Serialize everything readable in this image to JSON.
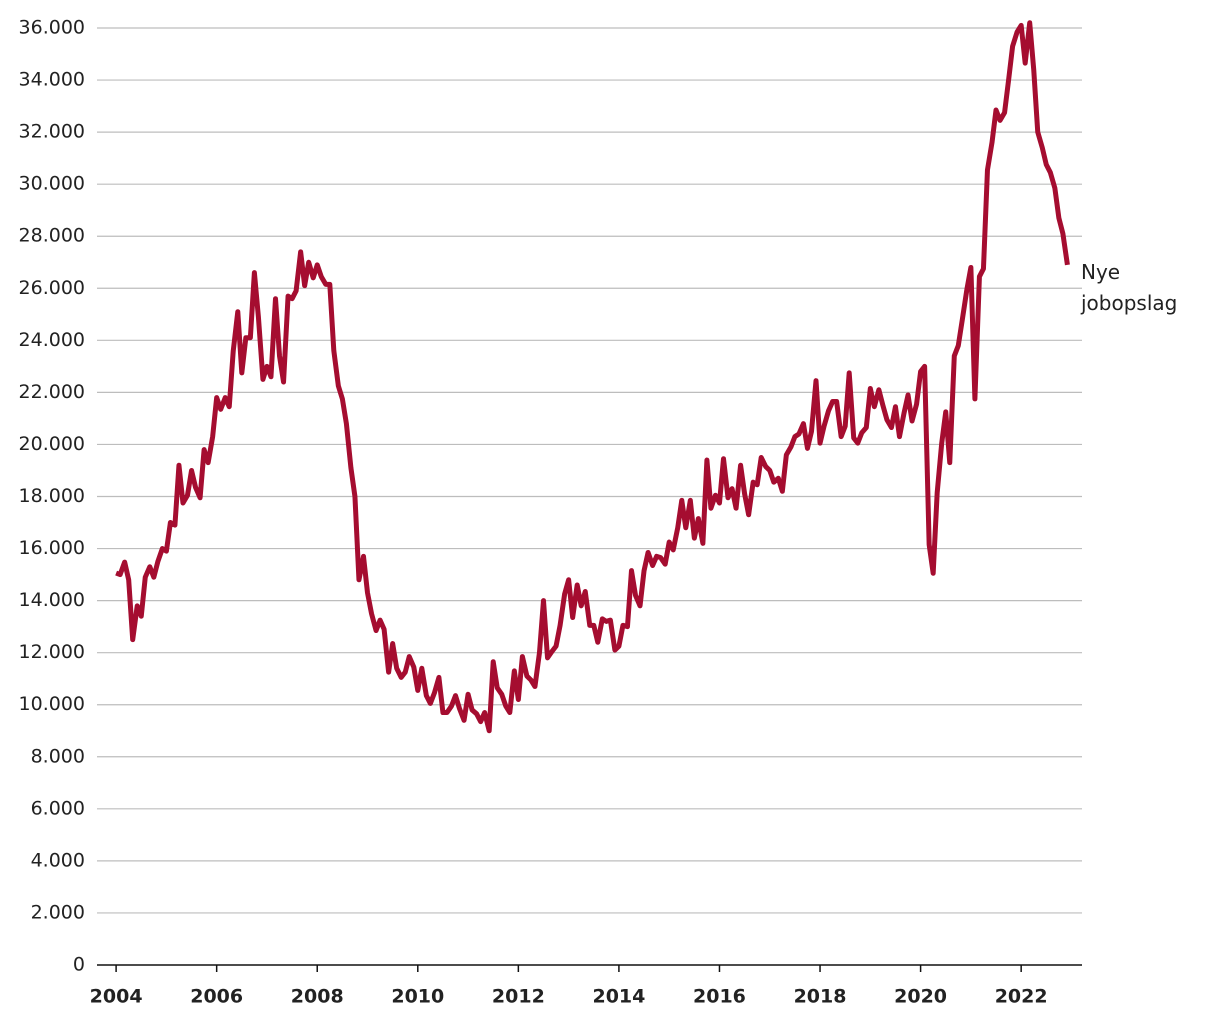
{
  "chart_data": {
    "type": "line",
    "annotations": [
      "Nye jobopslag"
    ],
    "x": [
      2004.0,
      2004.08,
      2004.17,
      2004.25,
      2004.33,
      2004.42,
      2004.5,
      2004.58,
      2004.67,
      2004.75,
      2004.83,
      2004.92,
      2005.0,
      2005.08,
      2005.17,
      2005.25,
      2005.33,
      2005.42,
      2005.5,
      2005.58,
      2005.67,
      2005.75,
      2005.83,
      2005.92,
      2006.0,
      2006.08,
      2006.17,
      2006.25,
      2006.33,
      2006.42,
      2006.5,
      2006.58,
      2006.67,
      2006.75,
      2006.83,
      2006.92,
      2007.0,
      2007.08,
      2007.17,
      2007.25,
      2007.33,
      2007.42,
      2007.5,
      2007.58,
      2007.67,
      2007.75,
      2007.83,
      2007.92,
      2008.0,
      2008.08,
      2008.17,
      2008.25,
      2008.33,
      2008.42,
      2008.5,
      2008.58,
      2008.67,
      2008.75,
      2008.83,
      2008.92,
      2009.0,
      2009.08,
      2009.17,
      2009.25,
      2009.33,
      2009.42,
      2009.5,
      2009.58,
      2009.67,
      2009.75,
      2009.83,
      2009.92,
      2010.0,
      2010.08,
      2010.17,
      2010.25,
      2010.33,
      2010.42,
      2010.5,
      2010.58,
      2010.67,
      2010.75,
      2010.83,
      2010.92,
      2011.0,
      2011.08,
      2011.17,
      2011.25,
      2011.33,
      2011.42,
      2011.5,
      2011.58,
      2011.67,
      2011.75,
      2011.83,
      2011.92,
      2012.0,
      2012.08,
      2012.17,
      2012.25,
      2012.33,
      2012.42,
      2012.5,
      2012.58,
      2012.67,
      2012.75,
      2012.83,
      2012.92,
      2013.0,
      2013.08,
      2013.17,
      2013.25,
      2013.33,
      2013.42,
      2013.5,
      2013.58,
      2013.67,
      2013.75,
      2013.83,
      2013.92,
      2014.0,
      2014.08,
      2014.17,
      2014.25,
      2014.33,
      2014.42,
      2014.5,
      2014.58,
      2014.67,
      2014.75,
      2014.83,
      2014.92,
      2015.0,
      2015.08,
      2015.17,
      2015.25,
      2015.33,
      2015.42,
      2015.5,
      2015.58,
      2015.67,
      2015.75,
      2015.83,
      2015.92,
      2016.0,
      2016.08,
      2016.17,
      2016.25,
      2016.33,
      2016.42,
      2016.5,
      2016.58,
      2016.67,
      2016.75,
      2016.83,
      2016.92,
      2017.0,
      2017.08,
      2017.17,
      2017.25,
      2017.33,
      2017.42,
      2017.5,
      2017.58,
      2017.67,
      2017.75,
      2017.83,
      2017.92,
      2018.0,
      2018.08,
      2018.17,
      2018.25,
      2018.33,
      2018.42,
      2018.5,
      2018.58,
      2018.67,
      2018.75,
      2018.83,
      2018.92,
      2019.0,
      2019.08,
      2019.17,
      2019.25,
      2019.33,
      2019.42,
      2019.5,
      2019.58,
      2019.67,
      2019.75,
      2019.83,
      2019.92,
      2020.0,
      2020.08,
      2020.17,
      2020.25,
      2020.33,
      2020.42,
      2020.5,
      2020.58,
      2020.67,
      2020.75,
      2020.83,
      2020.92,
      2021.0,
      2021.08,
      2021.17,
      2021.25,
      2021.33,
      2021.42,
      2021.5,
      2021.58,
      2021.67,
      2021.75,
      2021.83,
      2021.92,
      2022.0,
      2022.08,
      2022.17,
      2022.25,
      2022.33,
      2022.42,
      2022.5,
      2022.58,
      2022.67,
      2022.75,
      2022.83,
      2022.92
    ],
    "series": [
      {
        "name": "Nye jobopslag",
        "color": "#a50d30",
        "values": [
          15060,
          15000,
          15480,
          14800,
          12500,
          13800,
          13400,
          14900,
          15300,
          14900,
          15500,
          16000,
          15900,
          17000,
          16900,
          19200,
          17750,
          18050,
          19000,
          18350,
          17950,
          19800,
          19300,
          20300,
          21800,
          21350,
          21800,
          21450,
          23600,
          25100,
          22750,
          24100,
          24100,
          26600,
          24900,
          22500,
          23000,
          22600,
          25600,
          23400,
          22400,
          25700,
          25600,
          25900,
          27400,
          26100,
          27000,
          26400,
          26900,
          26450,
          26150,
          26150,
          23600,
          22250,
          21750,
          20800,
          19100,
          18000,
          14800,
          15700,
          14300,
          13500,
          12850,
          13250,
          12900,
          11250,
          12350,
          11400,
          11050,
          11250,
          11850,
          11450,
          10550,
          11400,
          10350,
          10050,
          10450,
          11050,
          9700,
          9700,
          9950,
          10350,
          9850,
          9400,
          10400,
          9800,
          9650,
          9350,
          9700,
          9000,
          11650,
          10650,
          10400,
          9950,
          9700,
          11300,
          10200,
          11850,
          11100,
          10950,
          10700,
          12000,
          14000,
          11800,
          12050,
          12250,
          13050,
          14250,
          14800,
          13350,
          14600,
          13800,
          14350,
          13050,
          13050,
          12400,
          13300,
          13200,
          13250,
          12100,
          12250,
          13050,
          13000,
          15150,
          14200,
          13800,
          15150,
          15850,
          15350,
          15700,
          15650,
          15400,
          16250,
          15950,
          16800,
          17850,
          16800,
          17850,
          16400,
          17150,
          16200,
          19400,
          17550,
          18050,
          17750,
          19450,
          17950,
          18300,
          17550,
          19200,
          18100,
          17300,
          18550,
          18450,
          19500,
          19150,
          19000,
          18550,
          18700,
          18200,
          19600,
          19900,
          20300,
          20400,
          20800,
          19850,
          20500,
          22450,
          20050,
          20700,
          21300,
          21650,
          21650,
          20300,
          20700,
          22750,
          20250,
          20050,
          20450,
          20650,
          22150,
          21450,
          22100,
          21500,
          20950,
          20650,
          21450,
          20300,
          21200,
          21900,
          20900,
          21550,
          22800,
          23000,
          16150,
          15050,
          18150,
          20050,
          21250,
          19300,
          23400,
          23800,
          24800,
          25950,
          26800,
          21750,
          26450,
          26750,
          30550,
          31600,
          32850,
          32450,
          32750,
          34000,
          35300,
          35850,
          36100,
          34650,
          36200,
          34400,
          32000,
          31400,
          30750,
          30450,
          29850,
          28700,
          28100,
          26900
        ]
      }
    ],
    "xlim": [
      2003.62,
      2023.21
    ],
    "xticks": [
      2004,
      2006,
      2008,
      2010,
      2012,
      2014,
      2016,
      2018,
      2020,
      2022
    ],
    "ylim": [
      0,
      36000
    ],
    "yticks": [
      0,
      {
        "value": 2000,
        "label": "2.000"
      },
      {
        "value": 4000,
        "label": "4.000"
      },
      {
        "value": 6000,
        "label": "6.000"
      },
      {
        "value": 8000,
        "label": "8.000"
      },
      {
        "value": 10000,
        "label": "10.000"
      },
      {
        "value": 12000,
        "label": "12.000"
      },
      {
        "value": 14000,
        "label": "14.000"
      },
      {
        "value": 16000,
        "label": "16.000"
      },
      {
        "value": 18000,
        "label": "18.000"
      },
      {
        "value": 20000,
        "label": "20.000"
      },
      {
        "value": 22000,
        "label": "22.000"
      },
      {
        "value": 24000,
        "label": "24.000"
      },
      {
        "value": 26000,
        "label": "26.000"
      },
      {
        "value": 28000,
        "label": "28.000"
      },
      {
        "value": 30000,
        "label": "30.000"
      },
      {
        "value": 32000,
        "label": "32.000"
      },
      {
        "value": 34000,
        "label": "34.000"
      },
      {
        "value": 36000,
        "label": "36.000"
      }
    ],
    "grid": true
  }
}
